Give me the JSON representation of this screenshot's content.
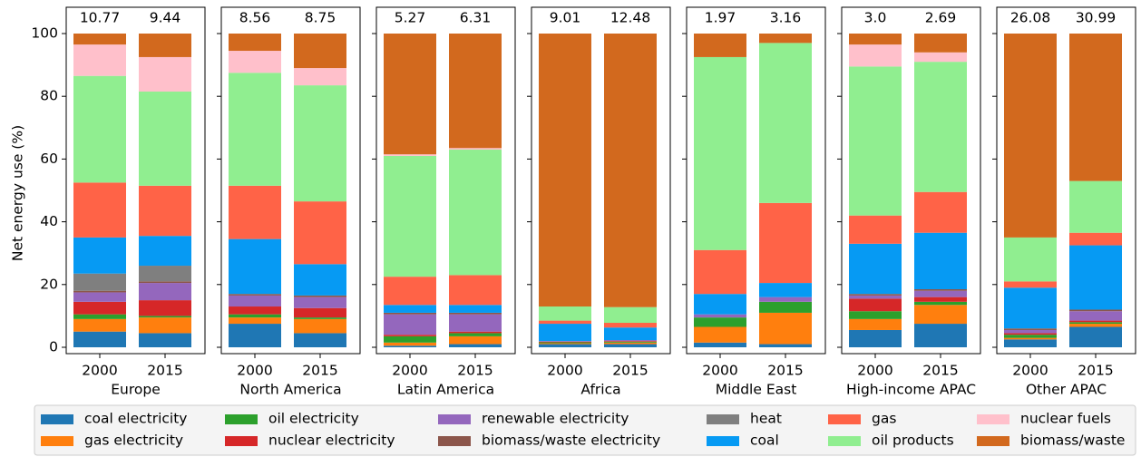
{
  "chart_data": [
    {
      "type": "bar",
      "stacked": true,
      "xlabel": "Europe",
      "ylabel": "Net energy use (%)",
      "categories": [
        "2000",
        "2015"
      ],
      "annotations": [
        "10.77",
        "9.44"
      ],
      "ylim": [
        0,
        100
      ],
      "yticks": [
        0,
        20,
        40,
        60,
        80,
        100
      ],
      "series": [
        {
          "name": "coal electricity",
          "color": "#1f77b4",
          "values": [
            5,
            4.5
          ]
        },
        {
          "name": "gas electricity",
          "color": "#ff7f0e",
          "values": [
            4,
            5
          ]
        },
        {
          "name": "oil electricity",
          "color": "#2ca02c",
          "values": [
            1.5,
            0.5
          ]
        },
        {
          "name": "nuclear electricity",
          "color": "#d62728",
          "values": [
            4,
            5
          ]
        },
        {
          "name": "renewable electricity",
          "color": "#9467bd",
          "values": [
            3,
            5.5
          ]
        },
        {
          "name": "biomass/waste electricity",
          "color": "#8c564b",
          "values": [
            0.5,
            0.5
          ]
        },
        {
          "name": "heat",
          "color": "#7f7f7f",
          "values": [
            5.5,
            5
          ]
        },
        {
          "name": "coal",
          "color": "#069af3",
          "values": [
            11.5,
            9.5
          ]
        },
        {
          "name": "gas",
          "color": "#ff6347",
          "values": [
            17.5,
            16
          ]
        },
        {
          "name": "oil products",
          "color": "#90ee90",
          "values": [
            34,
            30
          ]
        },
        {
          "name": "nuclear fuels",
          "color": "#ffc0cb",
          "values": [
            10,
            11
          ]
        },
        {
          "name": "biomass/waste",
          "color": "#d2691e",
          "values": [
            3.5,
            7.5
          ]
        }
      ]
    },
    {
      "type": "bar",
      "stacked": true,
      "xlabel": "North America",
      "categories": [
        "2000",
        "2015"
      ],
      "annotations": [
        "8.56",
        "8.75"
      ],
      "ylim": [
        0,
        100
      ],
      "yticks": [
        0,
        20,
        40,
        60,
        80,
        100
      ],
      "series": [
        {
          "name": "coal electricity",
          "color": "#1f77b4",
          "values": [
            7.5,
            4.5
          ]
        },
        {
          "name": "gas electricity",
          "color": "#ff7f0e",
          "values": [
            2,
            4.5
          ]
        },
        {
          "name": "oil electricity",
          "color": "#2ca02c",
          "values": [
            1,
            0.5
          ]
        },
        {
          "name": "nuclear electricity",
          "color": "#d62728",
          "values": [
            2.5,
            3
          ]
        },
        {
          "name": "renewable electricity",
          "color": "#9467bd",
          "values": [
            3.5,
            3.5
          ]
        },
        {
          "name": "biomass/waste electricity",
          "color": "#8c564b",
          "values": [
            0.5,
            0.5
          ]
        },
        {
          "name": "heat",
          "color": "#7f7f7f",
          "values": [
            0,
            0
          ]
        },
        {
          "name": "coal",
          "color": "#069af3",
          "values": [
            17.5,
            10
          ]
        },
        {
          "name": "gas",
          "color": "#ff6347",
          "values": [
            17,
            20
          ]
        },
        {
          "name": "oil products",
          "color": "#90ee90",
          "values": [
            36,
            37
          ]
        },
        {
          "name": "nuclear fuels",
          "color": "#ffc0cb",
          "values": [
            7,
            5.5
          ]
        },
        {
          "name": "biomass/waste",
          "color": "#d2691e",
          "values": [
            5.5,
            11
          ]
        }
      ]
    },
    {
      "type": "bar",
      "stacked": true,
      "xlabel": "Latin America",
      "categories": [
        "2000",
        "2015"
      ],
      "annotations": [
        "5.27",
        "6.31"
      ],
      "ylim": [
        0,
        100
      ],
      "yticks": [
        0,
        20,
        40,
        60,
        80,
        100
      ],
      "series": [
        {
          "name": "coal electricity",
          "color": "#1f77b4",
          "values": [
            0.5,
            1
          ]
        },
        {
          "name": "gas electricity",
          "color": "#ff7f0e",
          "values": [
            1,
            2.5
          ]
        },
        {
          "name": "oil electricity",
          "color": "#2ca02c",
          "values": [
            2,
            1
          ]
        },
        {
          "name": "nuclear electricity",
          "color": "#d62728",
          "values": [
            0.5,
            0.5
          ]
        },
        {
          "name": "renewable electricity",
          "color": "#9467bd",
          "values": [
            6.5,
            5.5
          ]
        },
        {
          "name": "biomass/waste electricity",
          "color": "#8c564b",
          "values": [
            0.5,
            0.5
          ]
        },
        {
          "name": "heat",
          "color": "#7f7f7f",
          "values": [
            0,
            0
          ]
        },
        {
          "name": "coal",
          "color": "#069af3",
          "values": [
            2.5,
            2.5
          ]
        },
        {
          "name": "gas",
          "color": "#ff6347",
          "values": [
            9,
            9.5
          ]
        },
        {
          "name": "oil products",
          "color": "#90ee90",
          "values": [
            38.5,
            40
          ]
        },
        {
          "name": "nuclear fuels",
          "color": "#ffc0cb",
          "values": [
            0.5,
            0.5
          ]
        },
        {
          "name": "biomass/waste",
          "color": "#d2691e",
          "values": [
            38.5,
            36.5
          ]
        }
      ]
    },
    {
      "type": "bar",
      "stacked": true,
      "xlabel": "Africa",
      "categories": [
        "2000",
        "2015"
      ],
      "annotations": [
        "9.01",
        "12.48"
      ],
      "ylim": [
        0,
        100
      ],
      "yticks": [
        0,
        20,
        40,
        60,
        80,
        100
      ],
      "series": [
        {
          "name": "coal electricity",
          "color": "#1f77b4",
          "values": [
            1,
            1
          ]
        },
        {
          "name": "gas electricity",
          "color": "#ff7f0e",
          "values": [
            0.3,
            0.5
          ]
        },
        {
          "name": "oil electricity",
          "color": "#2ca02c",
          "values": [
            0.3,
            0.3
          ]
        },
        {
          "name": "nuclear electricity",
          "color": "#d62728",
          "values": [
            0.2,
            0.2
          ]
        },
        {
          "name": "renewable electricity",
          "color": "#9467bd",
          "values": [
            0.2,
            0.3
          ]
        },
        {
          "name": "biomass/waste electricity",
          "color": "#8c564b",
          "values": [
            0,
            0
          ]
        },
        {
          "name": "heat",
          "color": "#7f7f7f",
          "values": [
            0,
            0
          ]
        },
        {
          "name": "coal",
          "color": "#069af3",
          "values": [
            5.5,
            4
          ]
        },
        {
          "name": "gas",
          "color": "#ff6347",
          "values": [
            1,
            1.5
          ]
        },
        {
          "name": "oil products",
          "color": "#90ee90",
          "values": [
            4.5,
            5
          ]
        },
        {
          "name": "nuclear fuels",
          "color": "#ffc0cb",
          "values": [
            0,
            0
          ]
        },
        {
          "name": "biomass/waste",
          "color": "#d2691e",
          "values": [
            87,
            87.2
          ]
        }
      ]
    },
    {
      "type": "bar",
      "stacked": true,
      "xlabel": "Middle East",
      "categories": [
        "2000",
        "2015"
      ],
      "annotations": [
        "1.97",
        "3.16"
      ],
      "ylim": [
        0,
        100
      ],
      "yticks": [
        0,
        20,
        40,
        60,
        80,
        100
      ],
      "series": [
        {
          "name": "coal electricity",
          "color": "#1f77b4",
          "values": [
            1.5,
            1
          ]
        },
        {
          "name": "gas electricity",
          "color": "#ff7f0e",
          "values": [
            5,
            10
          ]
        },
        {
          "name": "oil electricity",
          "color": "#2ca02c",
          "values": [
            3,
            3.5
          ]
        },
        {
          "name": "nuclear electricity",
          "color": "#d62728",
          "values": [
            0,
            0
          ]
        },
        {
          "name": "renewable electricity",
          "color": "#9467bd",
          "values": [
            1,
            1.5
          ]
        },
        {
          "name": "biomass/waste electricity",
          "color": "#8c564b",
          "values": [
            0,
            0
          ]
        },
        {
          "name": "heat",
          "color": "#7f7f7f",
          "values": [
            0,
            0
          ]
        },
        {
          "name": "coal",
          "color": "#069af3",
          "values": [
            6.5,
            4.5
          ]
        },
        {
          "name": "gas",
          "color": "#ff6347",
          "values": [
            14,
            25.5
          ]
        },
        {
          "name": "oil products",
          "color": "#90ee90",
          "values": [
            61.5,
            51
          ]
        },
        {
          "name": "nuclear fuels",
          "color": "#ffc0cb",
          "values": [
            0,
            0
          ]
        },
        {
          "name": "biomass/waste",
          "color": "#d2691e",
          "values": [
            7.5,
            3
          ]
        }
      ]
    },
    {
      "type": "bar",
      "stacked": true,
      "xlabel": "High-income APAC",
      "categories": [
        "2000",
        "2015"
      ],
      "annotations": [
        "3.0",
        "2.69"
      ],
      "ylim": [
        0,
        100
      ],
      "yticks": [
        0,
        20,
        40,
        60,
        80,
        100
      ],
      "series": [
        {
          "name": "coal electricity",
          "color": "#1f77b4",
          "values": [
            5.5,
            7.5
          ]
        },
        {
          "name": "gas electricity",
          "color": "#ff7f0e",
          "values": [
            3.5,
            6
          ]
        },
        {
          "name": "oil electricity",
          "color": "#2ca02c",
          "values": [
            2.5,
            1
          ]
        },
        {
          "name": "nuclear electricity",
          "color": "#d62728",
          "values": [
            4,
            1.5
          ]
        },
        {
          "name": "renewable electricity",
          "color": "#9467bd",
          "values": [
            1,
            2
          ]
        },
        {
          "name": "biomass/waste electricity",
          "color": "#8c564b",
          "values": [
            0.5,
            0.5
          ]
        },
        {
          "name": "heat",
          "color": "#7f7f7f",
          "values": [
            0,
            0
          ]
        },
        {
          "name": "coal",
          "color": "#069af3",
          "values": [
            16,
            18
          ]
        },
        {
          "name": "gas",
          "color": "#ff6347",
          "values": [
            9,
            13
          ]
        },
        {
          "name": "oil products",
          "color": "#90ee90",
          "values": [
            47.5,
            41.5
          ]
        },
        {
          "name": "nuclear fuels",
          "color": "#ffc0cb",
          "values": [
            7,
            3
          ]
        },
        {
          "name": "biomass/waste",
          "color": "#d2691e",
          "values": [
            3.5,
            6
          ]
        }
      ]
    },
    {
      "type": "bar",
      "stacked": true,
      "xlabel": "Other APAC",
      "categories": [
        "2000",
        "2015"
      ],
      "annotations": [
        "26.08",
        "30.99"
      ],
      "ylim": [
        0,
        100
      ],
      "yticks": [
        0,
        20,
        40,
        60,
        80,
        100
      ],
      "series": [
        {
          "name": "coal electricity",
          "color": "#1f77b4",
          "values": [
            2.5,
            6.5
          ]
        },
        {
          "name": "gas electricity",
          "color": "#ff7f0e",
          "values": [
            0.5,
            1
          ]
        },
        {
          "name": "oil electricity",
          "color": "#2ca02c",
          "values": [
            1,
            0.5
          ]
        },
        {
          "name": "nuclear electricity",
          "color": "#d62728",
          "values": [
            0.5,
            0.5
          ]
        },
        {
          "name": "renewable electricity",
          "color": "#9467bd",
          "values": [
            1,
            3
          ]
        },
        {
          "name": "biomass/waste electricity",
          "color": "#8c564b",
          "values": [
            0.5,
            0.5
          ]
        },
        {
          "name": "heat",
          "color": "#7f7f7f",
          "values": [
            0,
            0
          ]
        },
        {
          "name": "coal",
          "color": "#069af3",
          "values": [
            13,
            20.5
          ]
        },
        {
          "name": "gas",
          "color": "#ff6347",
          "values": [
            2,
            4
          ]
        },
        {
          "name": "oil products",
          "color": "#90ee90",
          "values": [
            14,
            16.5
          ]
        },
        {
          "name": "nuclear fuels",
          "color": "#ffc0cb",
          "values": [
            0,
            0
          ]
        },
        {
          "name": "biomass/waste",
          "color": "#d2691e",
          "values": [
            65,
            47
          ]
        }
      ]
    }
  ]
}
